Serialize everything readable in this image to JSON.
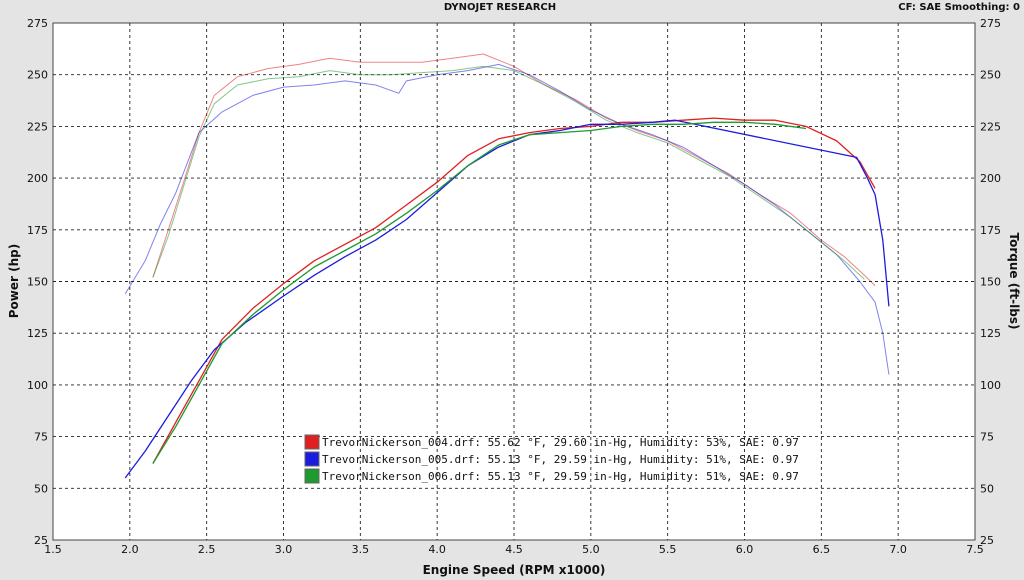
{
  "header": {
    "title": "DYNOJET RESEARCH",
    "right": "CF: SAE  Smoothing: 0"
  },
  "chart_data": {
    "type": "line",
    "title": "",
    "xlabel": "Engine Speed (RPM x1000)",
    "ylabel": "Power (hp)",
    "y2label": "Torque (ft-lbs)",
    "xlim": [
      1.5,
      7.5
    ],
    "ylim": [
      25,
      275
    ],
    "y2lim": [
      25,
      275
    ],
    "xticks": [
      "1.5",
      "2.0",
      "2.5",
      "3.0",
      "3.5",
      "4.0",
      "4.5",
      "5.0",
      "5.5",
      "6.0",
      "6.5",
      "7.0",
      "7.5"
    ],
    "yticks": [
      "25",
      "50",
      "75",
      "100",
      "125",
      "150",
      "175",
      "200",
      "225",
      "250",
      "275"
    ],
    "grid": true,
    "legend_position": "lower-center",
    "series": [
      {
        "name": "TrevorNickerson_004.drf: 55.62 °F, 29.60 in-Hg, Humidity: 53%, SAE: 0.97",
        "color": "#e02020",
        "power": {
          "x": [
            2.15,
            2.3,
            2.45,
            2.6,
            2.8,
            3.0,
            3.2,
            3.4,
            3.6,
            3.8,
            4.0,
            4.2,
            4.4,
            4.6,
            4.8,
            5.0,
            5.2,
            5.4,
            5.6,
            5.8,
            6.0,
            6.2,
            6.4,
            6.6,
            6.75,
            6.85
          ],
          "y": [
            62,
            82,
            102,
            122,
            137,
            149,
            160,
            168,
            176,
            187,
            198,
            211,
            219,
            222,
            224,
            225,
            227,
            227,
            228,
            229,
            228,
            228,
            225,
            218,
            208,
            195
          ]
        },
        "torque": {
          "x": [
            2.15,
            2.25,
            2.35,
            2.45,
            2.55,
            2.7,
            2.9,
            3.1,
            3.3,
            3.5,
            3.7,
            3.9,
            4.1,
            4.3,
            4.5,
            4.7,
            4.9,
            5.1,
            5.3,
            5.5,
            5.7,
            5.9,
            6.1,
            6.3,
            6.5,
            6.65,
            6.78,
            6.85
          ],
          "y": [
            152,
            175,
            198,
            222,
            240,
            249,
            253,
            255,
            258,
            256,
            256,
            256,
            258,
            260,
            254,
            245,
            238,
            229,
            223,
            218,
            210,
            202,
            192,
            183,
            170,
            162,
            153,
            148
          ]
        }
      },
      {
        "name": "TrevorNickerson_005.drf: 55.13 °F, 29.59 in-Hg, Humidity: 51%, SAE: 0.97",
        "color": "#1c1ce0",
        "power": {
          "x": [
            1.97,
            2.1,
            2.25,
            2.4,
            2.55,
            2.75,
            3.0,
            3.2,
            3.4,
            3.6,
            3.8,
            4.0,
            4.2,
            4.4,
            4.6,
            4.8,
            5.0,
            5.2,
            5.4,
            5.55,
            6.73,
            6.8,
            6.85,
            6.9,
            6.94
          ],
          "y": [
            55,
            68,
            85,
            102,
            117,
            130,
            143,
            153,
            162,
            170,
            180,
            193,
            206,
            215,
            221,
            223,
            226,
            226,
            227,
            228,
            210,
            200,
            192,
            170,
            138
          ]
        },
        "torque": {
          "x": [
            1.97,
            2.1,
            2.2,
            2.3,
            2.45,
            2.6,
            2.8,
            3.0,
            3.2,
            3.4,
            3.6,
            3.75,
            3.8,
            4.0,
            4.2,
            4.4,
            4.6,
            4.8,
            5.0,
            5.2,
            5.4,
            5.6,
            5.8,
            6.0,
            6.2,
            6.4,
            6.6,
            6.75,
            6.85,
            6.9,
            6.94
          ],
          "y": [
            144,
            160,
            178,
            193,
            222,
            232,
            240,
            244,
            245,
            247,
            245,
            241,
            247,
            250,
            252,
            255,
            250,
            242,
            233,
            226,
            221,
            215,
            206,
            197,
            187,
            175,
            163,
            150,
            140,
            125,
            105
          ]
        }
      },
      {
        "name": "TrevorNickerson_006.drf: 55.13 °F, 29.59 in-Hg, Humidity: 51%, SAE: 0.97",
        "color": "#1e9a2e",
        "power": {
          "x": [
            2.15,
            2.3,
            2.45,
            2.6,
            2.8,
            3.0,
            3.2,
            3.4,
            3.6,
            3.8,
            4.0,
            4.2,
            4.4,
            4.6,
            4.8,
            5.0,
            5.2,
            5.4,
            5.6,
            5.8,
            6.0,
            6.2,
            6.4
          ],
          "y": [
            62,
            80,
            100,
            120,
            134,
            146,
            157,
            165,
            173,
            183,
            194,
            206,
            216,
            221,
            222,
            223,
            225,
            226,
            226,
            227,
            227,
            226,
            224
          ]
        },
        "torque": {
          "x": [
            2.15,
            2.25,
            2.35,
            2.45,
            2.55,
            2.7,
            2.9,
            3.1,
            3.3,
            3.5,
            3.7,
            3.9,
            4.1,
            4.3,
            4.5,
            4.7,
            4.9,
            5.1,
            5.3,
            5.5,
            5.7,
            5.9,
            6.1,
            6.3,
            6.5,
            6.65,
            6.78
          ],
          "y": [
            152,
            172,
            196,
            220,
            236,
            245,
            248,
            249,
            252,
            250,
            250,
            251,
            252,
            254,
            252,
            245,
            237,
            228,
            222,
            217,
            209,
            201,
            191,
            181,
            169,
            160,
            151
          ]
        }
      }
    ]
  }
}
